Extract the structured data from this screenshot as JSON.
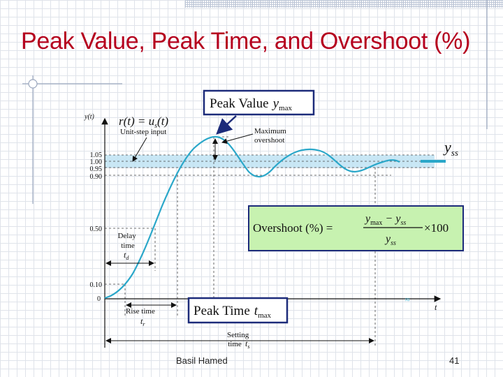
{
  "slide": {
    "title": "Peak Value, Peak Time, and Overshoot (%)",
    "footer_author": "Basil Hamed",
    "page_number": "41"
  },
  "diagram": {
    "y_axis_label": "y(t)",
    "x_axis_label": "t",
    "tick_labels": [
      "1.05",
      "1.00",
      "0.95",
      "0.90",
      "0.50",
      "0.10",
      "0"
    ],
    "unit_step_label": "Unit-step input",
    "input_eq_lhs": "r(t) = u",
    "input_eq_sub": "s",
    "input_eq_rhs": "(t)",
    "max_overshoot_line1": "Maximum",
    "max_overshoot_line2": "overshoot",
    "yss_main": "y",
    "yss_sub": "ss",
    "peak_value_box": {
      "text": "Peak Value",
      "var": "y",
      "sub": "max"
    },
    "peak_time_box": {
      "text": "Peak Time",
      "var": "t",
      "sub": "max"
    },
    "overshoot_box": {
      "lhs": "Overshoot (%) =",
      "num_a": "y",
      "num_a_sub": "max",
      "minus": "−",
      "num_b": "y",
      "num_b_sub": "ss",
      "den": "y",
      "den_sub": "ss",
      "times": "×100"
    },
    "delay_time": {
      "line1": "Delay",
      "line2": "time",
      "var": "t",
      "sub": "d"
    },
    "rise_time": {
      "line1": "Rise time",
      "var": "t",
      "sub": "r"
    },
    "settling_time": {
      "line1": "Setting",
      "line2": "time",
      "var": "t",
      "sub": "s"
    }
  },
  "colors": {
    "title": "#b5001e",
    "curve": "#2aa7c9",
    "band": "#bfe3f3",
    "overshoot_box_fill": "#c7f2b0",
    "box_border": "#1c2b7a"
  }
}
